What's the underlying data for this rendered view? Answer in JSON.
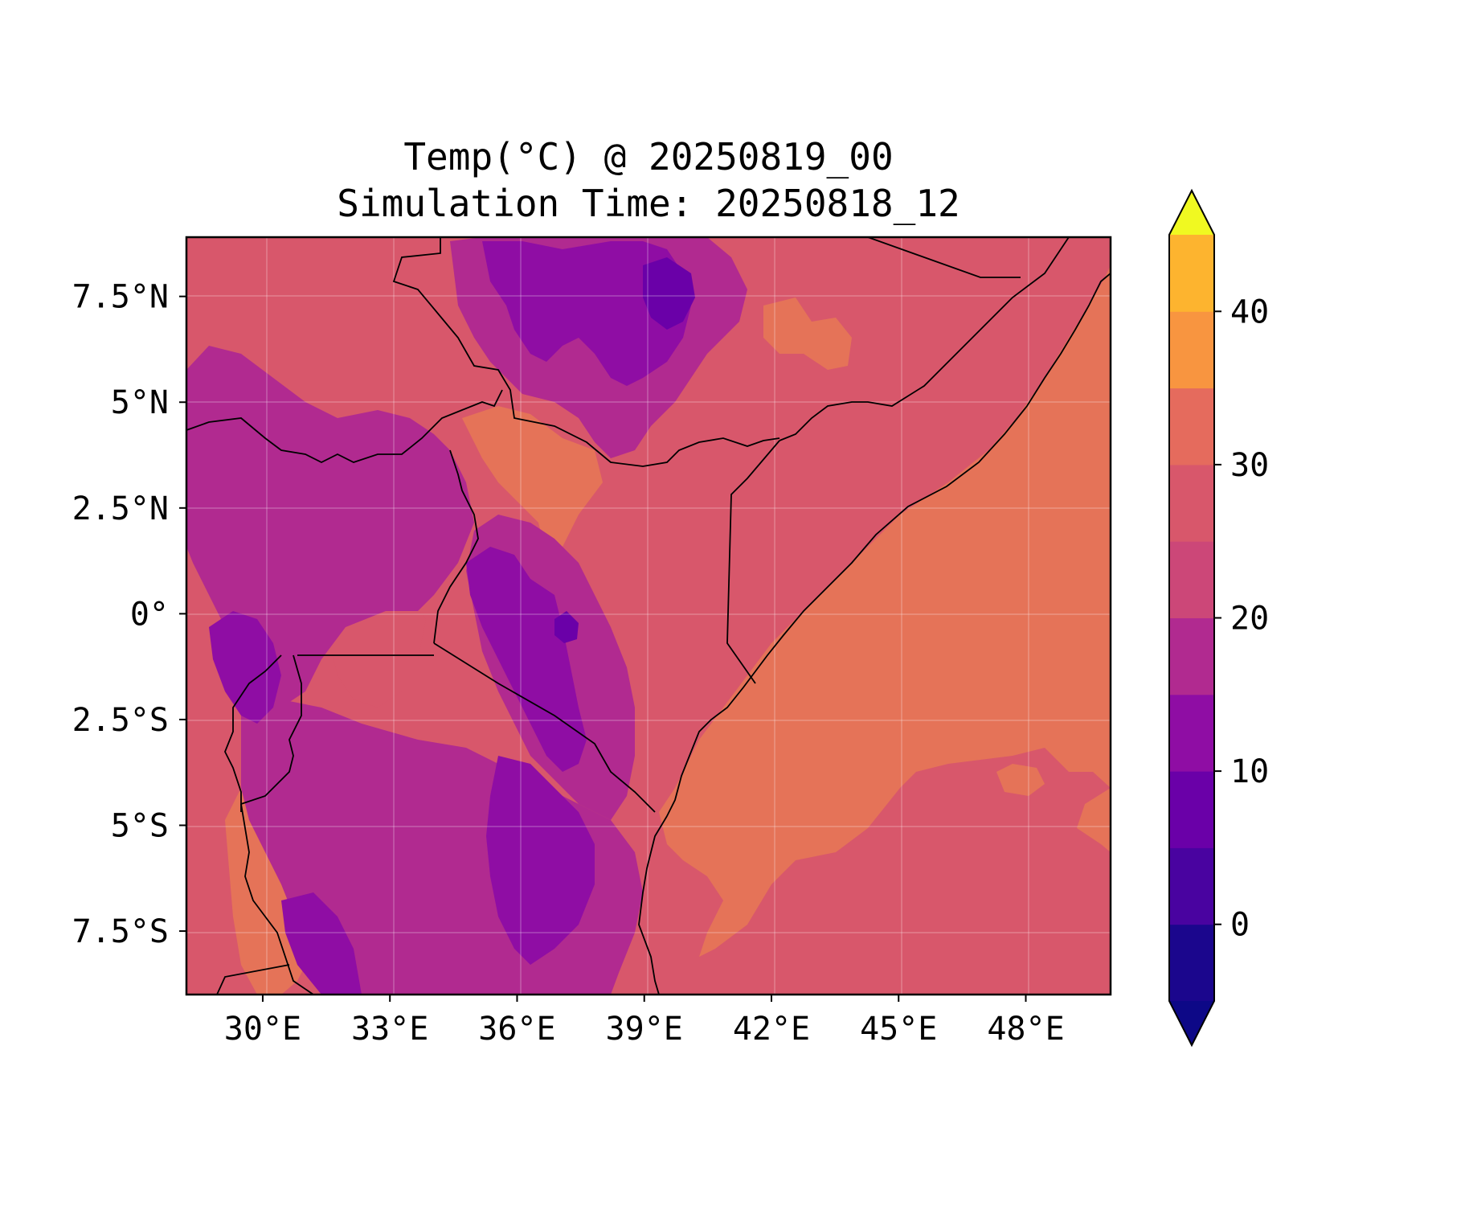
{
  "title_line1": "Temp(°C) @ 20250819_00",
  "title_line2": "Simulation Time: 20250818_12",
  "map": {
    "type": "filled-contour-map",
    "variable": "Temp(°C)",
    "extent": {
      "lon": [
        28.2,
        50.0
      ],
      "lat": [
        -9.0,
        8.9
      ]
    },
    "x_ticks": [
      "30°E",
      "33°E",
      "36°E",
      "39°E",
      "42°E",
      "45°E",
      "48°E"
    ],
    "x_tick_values": [
      30,
      33,
      36,
      39,
      42,
      45,
      48
    ],
    "y_ticks": [
      "7.5°N",
      "5°N",
      "2.5°N",
      "0°",
      "2.5°S",
      "5°S",
      "7.5°S"
    ],
    "y_tick_values": [
      7.5,
      5,
      2.5,
      0,
      -2.5,
      -5,
      -7.5
    ],
    "grid": true
  },
  "colorbar": {
    "levels": [
      -5,
      0,
      5,
      10,
      15,
      20,
      25,
      30,
      35,
      40,
      45
    ],
    "colors": [
      "#1b068d",
      "#4903a0",
      "#6a00a8",
      "#8f0da4",
      "#b12a90",
      "#cc4778",
      "#d8576b",
      "#e56b5d",
      "#f89540",
      "#fdb42f",
      "#f0f921"
    ],
    "under_color": "#0d0887",
    "over_color": "#f0f921",
    "extend": "both",
    "tick_labels": [
      "0",
      "10",
      "20",
      "30",
      "40"
    ],
    "tick_values": [
      0,
      10,
      20,
      30,
      40
    ]
  }
}
